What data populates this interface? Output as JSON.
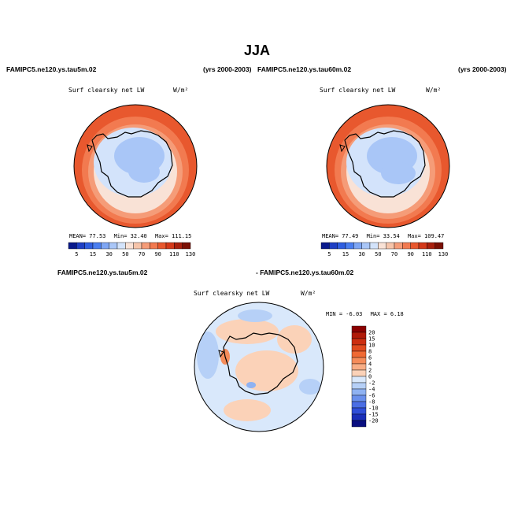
{
  "page": {
    "title": "JJA",
    "left_run": "FAMIPC5.ne120.ys.tau5m.02",
    "left_years": "(yrs 2000-2003)",
    "right_run": "FAMIPC5.ne120.ys.tau60m.02",
    "right_years": "(yrs 2000-2003)",
    "diff_run_a": "FAMIPC5.ne120.ys.tau5m.02",
    "diff_run_b": "- FAMIPC5.ne120.ys.tau60m.02"
  },
  "chart_data": [
    {
      "type": "heatmap",
      "id": "left",
      "title": "Surf clearsky net LW",
      "units": "W/m²",
      "stats": {
        "mean_label": "MEAN=",
        "mean": "77.53",
        "min_label": "Min=",
        "min": "32.40",
        "max_label": "Max=",
        "max": "111.15"
      },
      "colorbar": {
        "levels": [
          "5",
          "15",
          "30",
          "50",
          "70",
          "90",
          "110",
          "130"
        ],
        "colors": [
          "#0a1a8c",
          "#1f3fc4",
          "#2f5ee0",
          "#4a7ef0",
          "#7ea6f4",
          "#a9c6f7",
          "#d3e3fb",
          "#f9e2d6",
          "#f6c4aa",
          "#f59c78",
          "#f27a50",
          "#e8582e",
          "#d4391a",
          "#a8200e",
          "#7a1005"
        ]
      }
    },
    {
      "type": "heatmap",
      "id": "right",
      "title": "Surf clearsky net LW",
      "units": "W/m²",
      "stats": {
        "mean_label": "MEAN=",
        "mean": "77.49",
        "min_label": "Min=",
        "min": "33.54",
        "max_label": "Max=",
        "max": "109.47"
      },
      "colorbar": {
        "levels": [
          "5",
          "15",
          "30",
          "50",
          "70",
          "90",
          "110",
          "130"
        ],
        "colors": [
          "#0a1a8c",
          "#1f3fc4",
          "#2f5ee0",
          "#4a7ef0",
          "#7ea6f4",
          "#a9c6f7",
          "#d3e3fb",
          "#f9e2d6",
          "#f6c4aa",
          "#f59c78",
          "#f27a50",
          "#e8582e",
          "#d4391a",
          "#a8200e",
          "#7a1005"
        ]
      }
    },
    {
      "type": "heatmap",
      "id": "diff",
      "title": "Surf clearsky net LW",
      "units": "W/m²",
      "stats": {
        "min_label": "MIN =",
        "min": "-6.03",
        "max_label": "MAX =",
        "max": "6.18"
      },
      "colorbar": {
        "levels": [
          "20",
          "15",
          "10",
          "8",
          "6",
          "4",
          "2",
          "0",
          "-2",
          "-4",
          "-6",
          "-8",
          "-10",
          "-15",
          "-20"
        ],
        "colors": [
          "#8b0000",
          "#b01a08",
          "#cc2e10",
          "#e04a1e",
          "#f06a34",
          "#f58c5a",
          "#f8ae86",
          "#fbd2b8",
          "#d9e8fb",
          "#b6d0f7",
          "#8fb2f2",
          "#6a90ec",
          "#4b6ee4",
          "#2f4ed8",
          "#1a2eb8",
          "#0a0f80"
        ]
      }
    }
  ]
}
